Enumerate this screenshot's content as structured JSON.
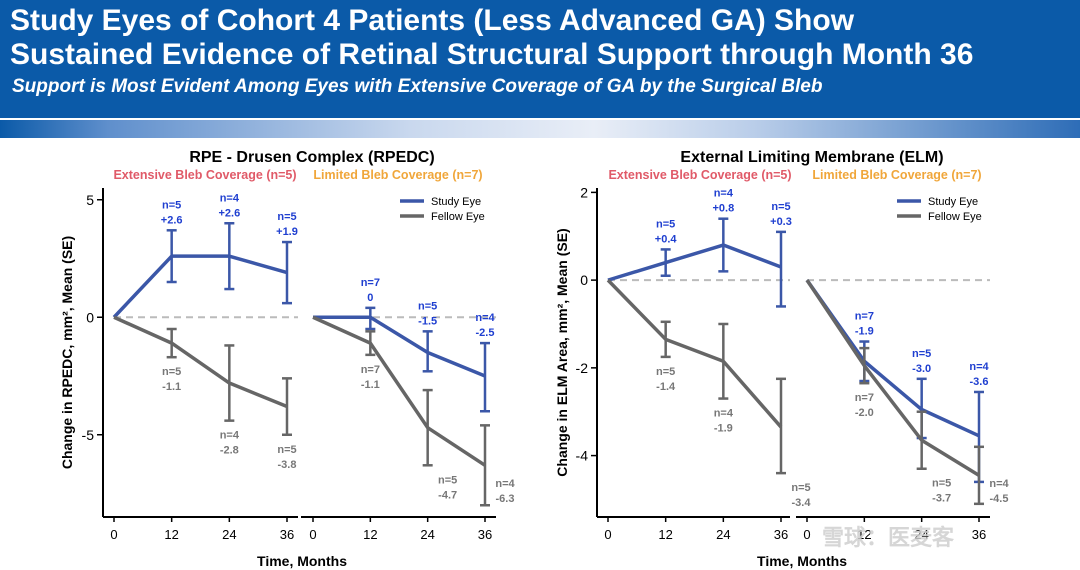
{
  "header": {
    "title_line1": "Study Eyes of Cohort 4 Patients (Less Advanced GA) Show",
    "title_line2": "Sustained Evidence of Retinal Structural Support through Month 36",
    "subtitle": "Support is Most Evident Among Eyes with Extensive Coverage of GA by the Surgical Bleb"
  },
  "watermark": "雪球：医麦客",
  "colors": {
    "header_bg": "#0b5aa8",
    "study": "#3b57a8",
    "fellow": "#666666",
    "extensive": "#e05a68",
    "limited": "#f0a63a",
    "n_study": "#1f3fd0",
    "n_fellow": "#777777"
  },
  "chart_data": [
    {
      "type": "line",
      "title": "RPE - Drusen Complex (RPEDC)",
      "ylabel": "Change in RPEDC, mm², Mean (SE)",
      "xlabel": "Time, Months",
      "ylim": [
        -8.5,
        5.5
      ],
      "yticks": [
        5,
        0,
        -5
      ],
      "grid": false,
      "legend_position": "top-right",
      "legend": [
        "Study Eye",
        "Fellow Eye"
      ],
      "panels": [
        {
          "subtitle": "Extensive Bleb Coverage (n=5)",
          "color_key": "extensive",
          "x_ticks": [
            "0",
            "12",
            "24",
            "36"
          ],
          "x": [
            0,
            12,
            24,
            36
          ],
          "series": [
            {
              "name": "Study Eye",
              "values": [
                0,
                2.6,
                2.6,
                1.9
              ],
              "error_bars": [
                null,
                [
                  1.5,
                  3.7
                ],
                [
                  1.2,
                  4.0
                ],
                [
                  0.6,
                  3.2
                ]
              ],
              "labels": [
                null,
                [
                  "n=5",
                  "+2.6"
                ],
                [
                  "n=4",
                  "+2.6"
                ],
                [
                  "n=5",
                  "+1.9"
                ]
              ]
            },
            {
              "name": "Fellow Eye",
              "values": [
                0,
                -1.1,
                -2.8,
                -3.8
              ],
              "error_bars": [
                null,
                [
                  -1.7,
                  -0.5
                ],
                [
                  -4.4,
                  -1.2
                ],
                [
                  -5.0,
                  -2.6
                ]
              ],
              "labels": [
                null,
                [
                  "n=5",
                  "-1.1"
                ],
                [
                  "n=4",
                  "-2.8"
                ],
                [
                  "n=5",
                  "-3.8"
                ]
              ]
            }
          ]
        },
        {
          "subtitle": "Limited Bleb Coverage (n=7)",
          "color_key": "limited",
          "x_ticks": [
            "0",
            "12",
            "24",
            "36"
          ],
          "x": [
            0,
            12,
            24,
            36
          ],
          "series": [
            {
              "name": "Study Eye",
              "values": [
                0,
                0,
                -1.5,
                -2.5
              ],
              "error_bars": [
                null,
                [
                  -0.5,
                  0.4
                ],
                [
                  -2.3,
                  -0.6
                ],
                [
                  -4.0,
                  -1.1
                ]
              ],
              "labels": [
                null,
                [
                  "n=7",
                  "0"
                ],
                [
                  "n=5",
                  "-1.5"
                ],
                [
                  "n=4",
                  "-2.5"
                ]
              ]
            },
            {
              "name": "Fellow Eye",
              "values": [
                0,
                -1.1,
                -4.7,
                -6.3
              ],
              "error_bars": [
                null,
                [
                  -1.6,
                  -0.6
                ],
                [
                  -6.3,
                  -3.1
                ],
                [
                  -8.0,
                  -4.6
                ]
              ],
              "labels": [
                null,
                [
                  "n=7",
                  "-1.1"
                ],
                [
                  "n=5",
                  "-4.7"
                ],
                [
                  "n=4",
                  "-6.3"
                ]
              ]
            }
          ]
        }
      ]
    },
    {
      "type": "line",
      "title": "External Limiting Membrane (ELM)",
      "ylabel": "Change in ELM Area, mm², Mean (SE)",
      "xlabel": "Time, Months",
      "ylim": [
        -5.4,
        2.1
      ],
      "yticks": [
        2,
        0,
        -2,
        -4
      ],
      "grid": false,
      "legend_position": "top-right",
      "legend": [
        "Study Eye",
        "Fellow Eye"
      ],
      "panels": [
        {
          "subtitle": "Extensive Bleb Coverage (n=5)",
          "color_key": "extensive",
          "x_ticks": [
            "0",
            "12",
            "24",
            "36"
          ],
          "x": [
            0,
            12,
            24,
            36
          ],
          "series": [
            {
              "name": "Study Eye",
              "values": [
                0,
                0.4,
                0.8,
                0.3
              ],
              "error_bars": [
                null,
                [
                  0.1,
                  0.7
                ],
                [
                  0.2,
                  1.4
                ],
                [
                  -0.6,
                  1.1
                ]
              ],
              "labels": [
                null,
                [
                  "n=5",
                  "+0.4"
                ],
                [
                  "n=4",
                  "+0.8"
                ],
                [
                  "n=5",
                  "+0.3"
                ]
              ]
            },
            {
              "name": "Fellow Eye",
              "values": [
                0,
                -1.35,
                -1.85,
                -3.35
              ],
              "error_bars": [
                null,
                [
                  -1.75,
                  -0.95
                ],
                [
                  -2.7,
                  -1.0
                ],
                [
                  -4.4,
                  -2.25
                ]
              ],
              "labels": [
                null,
                [
                  "n=5",
                  "-1.4"
                ],
                [
                  "n=4",
                  "-1.9"
                ],
                [
                  "n=5",
                  "-3.4"
                ]
              ]
            }
          ]
        },
        {
          "subtitle": "Limited Bleb Coverage (n=7)",
          "color_key": "limited",
          "x_ticks": [
            "0",
            "12",
            "24",
            "36"
          ],
          "x": [
            0,
            12,
            24,
            36
          ],
          "series": [
            {
              "name": "Study Eye",
              "values": [
                0,
                -1.85,
                -2.95,
                -3.55
              ],
              "error_bars": [
                null,
                [
                  -2.3,
                  -1.4
                ],
                [
                  -3.6,
                  -2.25
                ],
                [
                  -4.6,
                  -2.55
                ]
              ],
              "labels": [
                null,
                [
                  "n=7",
                  "-1.9"
                ],
                [
                  "n=5",
                  "-3.0"
                ],
                [
                  "n=4",
                  "-3.6"
                ]
              ]
            },
            {
              "name": "Fellow Eye",
              "values": [
                0,
                -1.95,
                -3.65,
                -4.45
              ],
              "error_bars": [
                null,
                [
                  -2.35,
                  -1.55
                ],
                [
                  -4.3,
                  -3.0
                ],
                [
                  -5.1,
                  -3.8
                ]
              ],
              "labels": [
                null,
                [
                  "n=7",
                  "-2.0"
                ],
                [
                  "n=5",
                  "-3.7"
                ],
                [
                  "n=4",
                  "-4.5"
                ]
              ]
            }
          ]
        }
      ]
    }
  ]
}
